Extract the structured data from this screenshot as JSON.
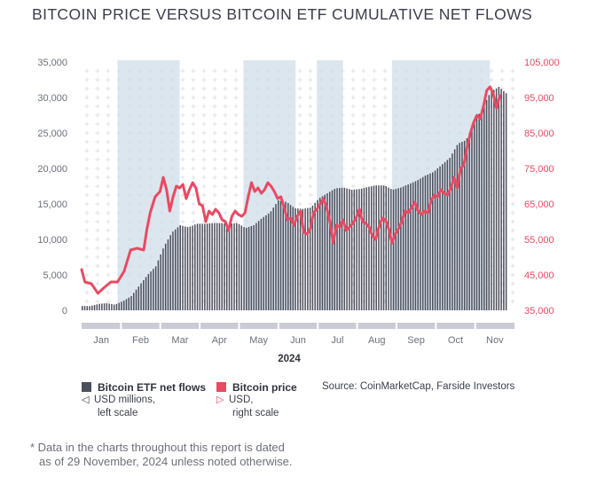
{
  "title": "BITCOIN PRICE VERSUS BITCOIN ETF CUMULATIVE NET FLOWS",
  "colors": {
    "bars": "#4d4e5c",
    "price": "#e84a63",
    "shade": "#dce6ee",
    "grid": "#d7dbe1",
    "text": "#6b707a"
  },
  "legend": {
    "flows": {
      "name": "Bitcoin ETF net flows",
      "glyph": "◁",
      "unit": "USD millions,",
      "scale": "left scale"
    },
    "price": {
      "name": "Bitcoin price",
      "glyph": "▷",
      "unit": "USD,",
      "scale": "right scale"
    }
  },
  "source": "Source: CoinMarketCap, Farside Investors",
  "note": {
    "line1": "* Data in the charts throughout this report is dated",
    "line2": "as of 29 November, 2024 unless noted otherwise."
  },
  "chart_data": {
    "type": "bar+line",
    "title": "BITCOIN PRICE VERSUS BITCOIN ETF CUMULATIVE NET FLOWS",
    "xlabel": "2024",
    "months": [
      "Jan",
      "Feb",
      "Mar",
      "Apr",
      "May",
      "Jun",
      "Jul",
      "Aug",
      "Sep",
      "Oct",
      "Nov"
    ],
    "left_axis": {
      "label": "USD millions",
      "ylim": [
        0,
        35000
      ],
      "ticks": [
        "0",
        "5,000",
        "10,000",
        "15,000",
        "20,000",
        "25,000",
        "30,000",
        "35,000"
      ]
    },
    "right_axis": {
      "label": "USD",
      "ylim": [
        35000,
        105000
      ],
      "ticks": [
        "35,000",
        "45,000",
        "55,000",
        "65,000",
        "75,000",
        "85,000",
        "95,000",
        "105,000"
      ]
    },
    "shaded_day_ranges": [
      [
        22,
        60
      ],
      [
        99,
        131
      ],
      [
        144,
        160
      ],
      [
        190,
        250
      ]
    ],
    "day_span": [
      0,
      265
    ],
    "series": [
      {
        "name": "Bitcoin ETF net flows",
        "kind": "bar",
        "axis": "left",
        "points": [
          [
            5,
            600
          ],
          [
            10,
            900
          ],
          [
            15,
            1000
          ],
          [
            20,
            800
          ],
          [
            25,
            1300
          ],
          [
            30,
            2000
          ],
          [
            35,
            3500
          ],
          [
            40,
            5000
          ],
          [
            45,
            6200
          ],
          [
            50,
            9000
          ],
          [
            55,
            11000
          ],
          [
            60,
            12000
          ],
          [
            65,
            11700
          ],
          [
            70,
            12200
          ],
          [
            75,
            12200
          ],
          [
            80,
            12300
          ],
          [
            85,
            12300
          ],
          [
            90,
            12200
          ],
          [
            95,
            12300
          ],
          [
            100,
            11600
          ],
          [
            105,
            12000
          ],
          [
            110,
            13000
          ],
          [
            115,
            13800
          ],
          [
            120,
            15500
          ],
          [
            125,
            15300
          ],
          [
            130,
            14400
          ],
          [
            135,
            14300
          ],
          [
            140,
            14500
          ],
          [
            145,
            15800
          ],
          [
            150,
            16500
          ],
          [
            155,
            17200
          ],
          [
            160,
            17300
          ],
          [
            165,
            17000
          ],
          [
            170,
            17100
          ],
          [
            175,
            17400
          ],
          [
            180,
            17600
          ],
          [
            185,
            17600
          ],
          [
            190,
            17000
          ],
          [
            195,
            17300
          ],
          [
            200,
            17800
          ],
          [
            205,
            18300
          ],
          [
            210,
            19000
          ],
          [
            215,
            19500
          ],
          [
            220,
            20500
          ],
          [
            225,
            21500
          ],
          [
            230,
            23500
          ],
          [
            235,
            24000
          ],
          [
            240,
            26500
          ],
          [
            245,
            28500
          ],
          [
            250,
            30800
          ],
          [
            255,
            31500
          ],
          [
            260,
            30500
          ]
        ]
      },
      {
        "name": "Bitcoin price",
        "kind": "line",
        "axis": "right",
        "points": [
          [
            0,
            46500
          ],
          [
            2,
            43000
          ],
          [
            6,
            42500
          ],
          [
            10,
            39800
          ],
          [
            14,
            41500
          ],
          [
            18,
            43000
          ],
          [
            22,
            43000
          ],
          [
            26,
            46000
          ],
          [
            30,
            52000
          ],
          [
            34,
            52500
          ],
          [
            38,
            52000
          ],
          [
            40,
            58000
          ],
          [
            42,
            62500
          ],
          [
            45,
            67000
          ],
          [
            48,
            68500
          ],
          [
            50,
            72500
          ],
          [
            52,
            69000
          ],
          [
            54,
            63000
          ],
          [
            56,
            67000
          ],
          [
            58,
            70000
          ],
          [
            60,
            69500
          ],
          [
            62,
            70500
          ],
          [
            64,
            66500
          ],
          [
            66,
            69000
          ],
          [
            68,
            71000
          ],
          [
            70,
            69500
          ],
          [
            72,
            65000
          ],
          [
            74,
            64500
          ],
          [
            76,
            60000
          ],
          [
            78,
            63000
          ],
          [
            80,
            62000
          ],
          [
            82,
            63500
          ],
          [
            84,
            62500
          ],
          [
            86,
            60500
          ],
          [
            88,
            60000
          ],
          [
            90,
            57500
          ],
          [
            92,
            61500
          ],
          [
            94,
            63000
          ],
          [
            96,
            62000
          ],
          [
            98,
            61500
          ],
          [
            100,
            62500
          ],
          [
            102,
            67000
          ],
          [
            104,
            71000
          ],
          [
            106,
            68500
          ],
          [
            108,
            69500
          ],
          [
            110,
            68000
          ],
          [
            112,
            69000
          ],
          [
            114,
            71000
          ],
          [
            116,
            70000
          ],
          [
            118,
            68500
          ],
          [
            120,
            66500
          ],
          [
            122,
            67000
          ],
          [
            124,
            64000
          ],
          [
            126,
            60500
          ],
          [
            128,
            61000
          ],
          [
            130,
            59000
          ],
          [
            132,
            61500
          ],
          [
            134,
            63000
          ],
          [
            136,
            57000
          ],
          [
            138,
            56500
          ],
          [
            140,
            58000
          ],
          [
            142,
            62500
          ],
          [
            144,
            63500
          ],
          [
            146,
            65000
          ],
          [
            148,
            66500
          ],
          [
            150,
            64000
          ],
          [
            152,
            60000
          ],
          [
            154,
            54000
          ],
          [
            156,
            59000
          ],
          [
            158,
            58500
          ],
          [
            160,
            60500
          ],
          [
            162,
            57500
          ],
          [
            164,
            58500
          ],
          [
            166,
            59500
          ],
          [
            168,
            61000
          ],
          [
            170,
            63500
          ],
          [
            172,
            60000
          ],
          [
            174,
            59500
          ],
          [
            176,
            58500
          ],
          [
            178,
            56000
          ],
          [
            180,
            55000
          ],
          [
            182,
            58500
          ],
          [
            184,
            61000
          ],
          [
            186,
            60500
          ],
          [
            188,
            58000
          ],
          [
            190,
            54000
          ],
          [
            192,
            56500
          ],
          [
            194,
            58000
          ],
          [
            196,
            60000
          ],
          [
            198,
            63000
          ],
          [
            200,
            62500
          ],
          [
            202,
            64000
          ],
          [
            204,
            65500
          ],
          [
            206,
            63000
          ],
          [
            208,
            62000
          ],
          [
            210,
            63000
          ],
          [
            212,
            62500
          ],
          [
            214,
            66000
          ],
          [
            216,
            67500
          ],
          [
            218,
            67000
          ],
          [
            220,
            69000
          ],
          [
            222,
            68000
          ],
          [
            224,
            67500
          ],
          [
            226,
            69500
          ],
          [
            228,
            72500
          ],
          [
            230,
            69500
          ],
          [
            232,
            75000
          ],
          [
            234,
            76000
          ],
          [
            236,
            81000
          ],
          [
            238,
            85000
          ],
          [
            240,
            88000
          ],
          [
            242,
            90000
          ],
          [
            244,
            89000
          ],
          [
            246,
            92500
          ],
          [
            248,
            97000
          ],
          [
            250,
            98000
          ],
          [
            252,
            96000
          ],
          [
            254,
            92000
          ],
          [
            256,
            95500
          ]
        ]
      }
    ]
  }
}
